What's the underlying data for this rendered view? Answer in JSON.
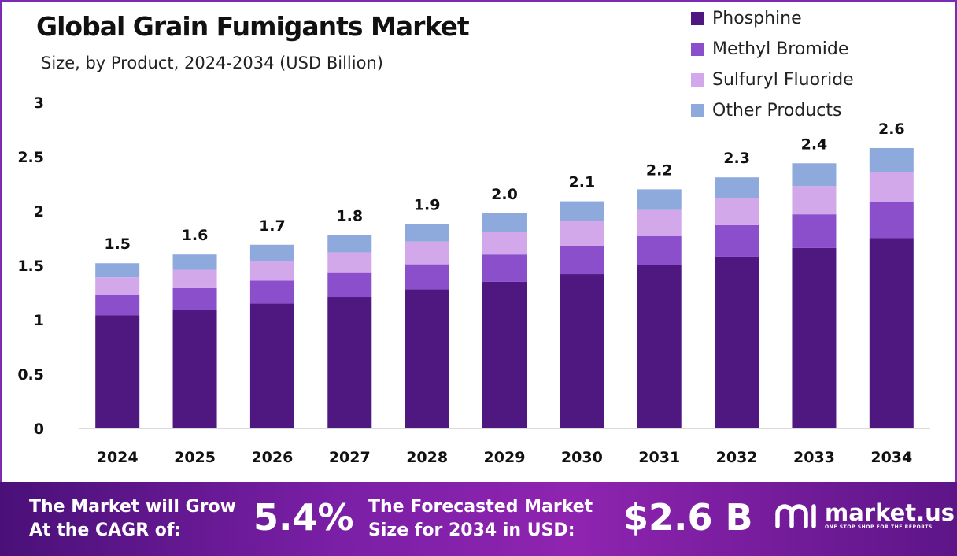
{
  "header": {
    "title": "Global Grain Fumigants Market",
    "subtitle": "Size, by Product, 2024-2034 (USD Billion)"
  },
  "legend": [
    {
      "label": "Phosphine",
      "color": "#4e1880"
    },
    {
      "label": "Methyl Bromide",
      "color": "#8c4fcc"
    },
    {
      "label": "Sulfuryl Fluoride",
      "color": "#d3a8ea"
    },
    {
      "label": "Other Products",
      "color": "#8ea9dc"
    }
  ],
  "chart_data": {
    "type": "bar",
    "stacked": true,
    "title": "Global Grain Fumigants Market",
    "subtitle": "Size, by Product, 2024-2034 (USD Billion)",
    "categories": [
      "2024",
      "2025",
      "2026",
      "2027",
      "2028",
      "2029",
      "2030",
      "2031",
      "2032",
      "2033",
      "2034"
    ],
    "series": [
      {
        "name": "Phosphine",
        "color": "#4e1880",
        "values": [
          1.04,
          1.09,
          1.15,
          1.21,
          1.28,
          1.35,
          1.42,
          1.5,
          1.58,
          1.66,
          1.75
        ]
      },
      {
        "name": "Methyl Bromide",
        "color": "#8c4fcc",
        "values": [
          0.19,
          0.2,
          0.21,
          0.22,
          0.23,
          0.25,
          0.26,
          0.27,
          0.29,
          0.31,
          0.33
        ]
      },
      {
        "name": "Sulfuryl Fluoride",
        "color": "#d3a8ea",
        "values": [
          0.16,
          0.17,
          0.18,
          0.19,
          0.21,
          0.21,
          0.23,
          0.24,
          0.25,
          0.26,
          0.28
        ]
      },
      {
        "name": "Other Products",
        "color": "#8ea9dc",
        "values": [
          0.13,
          0.14,
          0.15,
          0.16,
          0.16,
          0.17,
          0.18,
          0.19,
          0.19,
          0.21,
          0.22
        ]
      }
    ],
    "totals_labels": [
      "1.5",
      "1.6",
      "1.7",
      "1.8",
      "1.9",
      "2.0",
      "2.1",
      "2.2",
      "2.3",
      "2.4",
      "2.6"
    ],
    "yticks": [
      "0",
      "0.5",
      "1",
      "1.5",
      "2",
      "2.5",
      "3"
    ],
    "ylim": [
      0,
      3
    ],
    "grid": false,
    "legend_position": "top-right"
  },
  "banner": {
    "cagr_text_1": "The Market will Grow",
    "cagr_text_2": "At the CAGR of:",
    "cagr_value": "5.4%",
    "forecast_text_1": "The Forecasted Market",
    "forecast_text_2": "Size for 2034 in USD:",
    "forecast_value": "$2.6 B",
    "brand": "market.us",
    "tagline": "ONE STOP SHOP FOR THE REPORTS"
  }
}
